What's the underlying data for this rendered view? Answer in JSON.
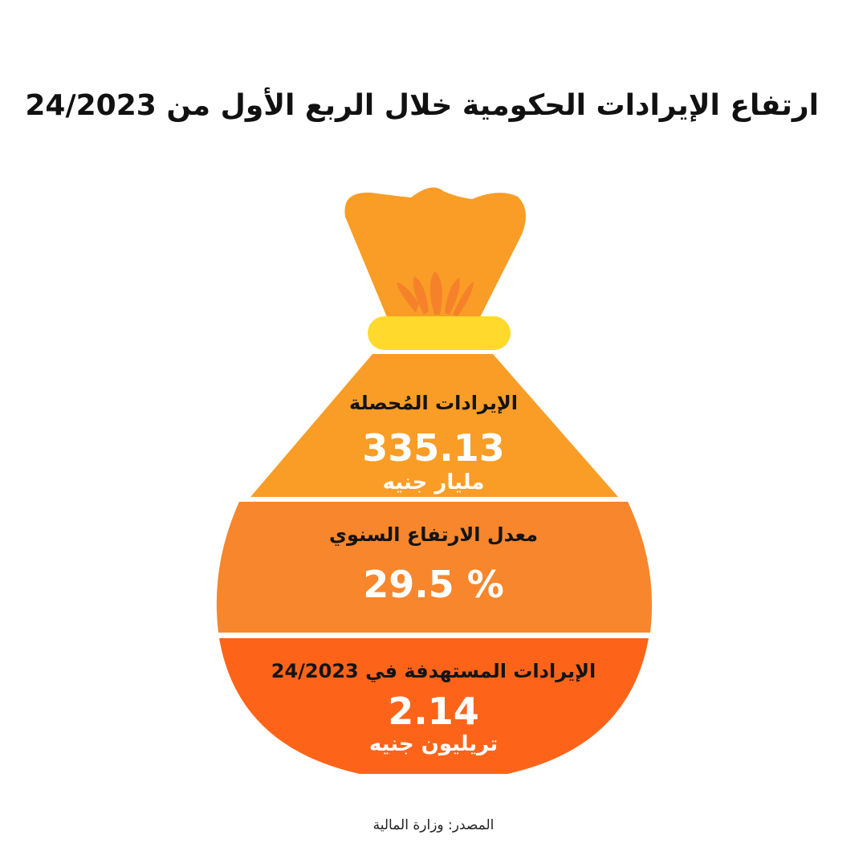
{
  "title": "ارتفاع الإيرادات الحكومية خلال الربع الأول من 24/2023",
  "colors": {
    "bag_top": "#F99D26",
    "bag_knot_leaves": "#F5822B",
    "band": "#FFD92B",
    "section_1": "#F99D26",
    "section_2": "#F7862C",
    "section_3": "#FE6419",
    "label_text": "#141414",
    "value_text": "#FFFFFF"
  },
  "sections": [
    {
      "label": "الإيرادات المُحصلة",
      "value": "335.13",
      "unit": "مليار جنيه"
    },
    {
      "label": "معدل الارتفاع السنوي",
      "value": "% 29.5",
      "unit": ""
    },
    {
      "label": "الإيرادات المستهدفة في 24/2023",
      "value": "2.14",
      "unit": "تريليون جنيه"
    }
  ],
  "source": "المصدر: وزارة المالية"
}
